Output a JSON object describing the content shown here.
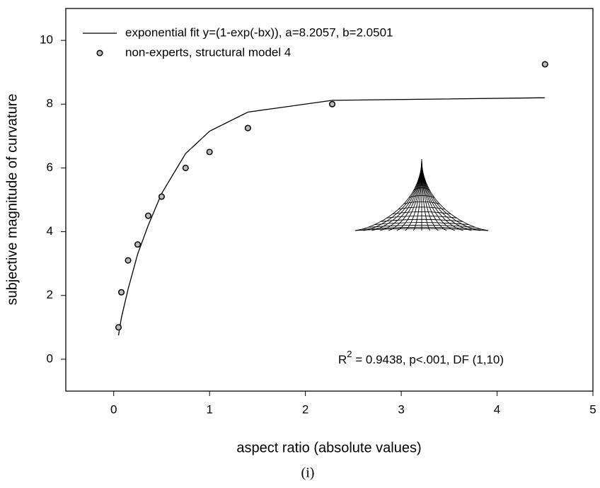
{
  "chart_data": {
    "type": "scatter",
    "xlabel": "aspect ratio (absolute values)",
    "ylabel": "subjective magnitude of curvature",
    "caption": "(i)",
    "annotation": [
      "R",
      "2",
      " = 0.9438, p<.001, DF (1,10)"
    ],
    "xlim": [
      -0.5,
      5
    ],
    "ylim": [
      -1,
      11
    ],
    "xticks": [
      0,
      1,
      2,
      3,
      4,
      5
    ],
    "yticks": [
      0,
      2,
      4,
      6,
      8,
      10
    ],
    "series": [
      {
        "name": "exponential fit y=(1-exp(-bx)), a=8.2057, b=2.0501",
        "kind": "line",
        "color": "#000000",
        "x": [
          0.05,
          0.08,
          0.15,
          0.25,
          0.36,
          0.5,
          0.75,
          1.0,
          1.4,
          2.28,
          4.5
        ],
        "values": [
          0.75,
          1.3,
          2.2,
          3.3,
          4.2,
          5.2,
          6.45,
          7.15,
          7.75,
          8.12,
          8.2
        ]
      },
      {
        "name": "non-experts, structural model 4",
        "kind": "marker",
        "color": "#bbbbbb",
        "x": [
          0.05,
          0.08,
          0.15,
          0.25,
          0.36,
          0.5,
          0.75,
          1.0,
          1.4,
          2.28,
          4.5
        ],
        "values": [
          1.0,
          2.1,
          3.1,
          3.6,
          4.5,
          5.1,
          6.0,
          6.5,
          7.25,
          8.0,
          9.25
        ]
      }
    ]
  }
}
